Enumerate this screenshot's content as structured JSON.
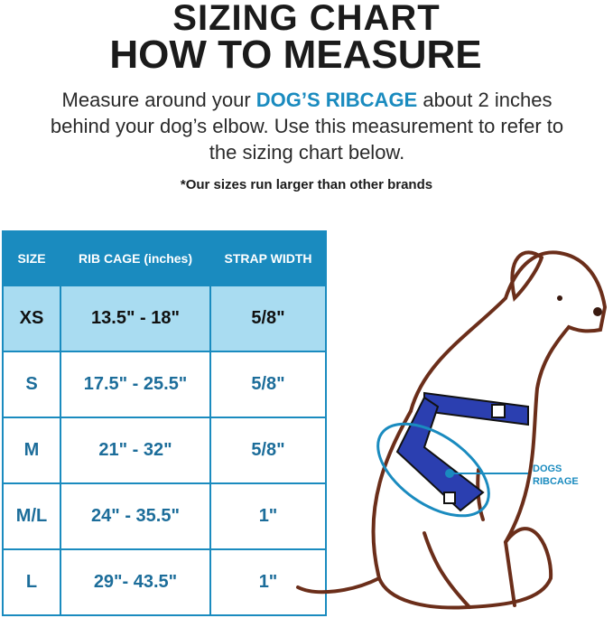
{
  "title": "SIZING CHART",
  "subtitle": "HOW TO MEASURE",
  "description": {
    "before": "Measure around your ",
    "highlight": "DOG’S RIBCAGE",
    "after": " about 2 inches behind your dog’s  elbow. Use this measurement to refer to the sizing chart below."
  },
  "note": "*Our sizes run larger than other brands",
  "table": {
    "headers": [
      "SIZE",
      "RIB CAGE (inches)",
      "STRAP WIDTH"
    ],
    "rows": [
      [
        "XS",
        "13.5\" - 18\"",
        "5/8\""
      ],
      [
        "S",
        "17.5\" - 25.5\"",
        "5/8\""
      ],
      [
        "M",
        "21\" - 32\"",
        "5/8\""
      ],
      [
        "M/L",
        "24\" - 35.5\"",
        "1\""
      ],
      [
        "L",
        "29\"- 43.5\"",
        "1\""
      ]
    ]
  },
  "diagram_label": {
    "line1": "DOGS",
    "line2": "RIBCAGE"
  },
  "colors": {
    "accent": "#1a8bbf",
    "highlight_row": "#a9dcf1",
    "dog_outline": "#6b2e1a",
    "harness": "#2b3fb0"
  }
}
